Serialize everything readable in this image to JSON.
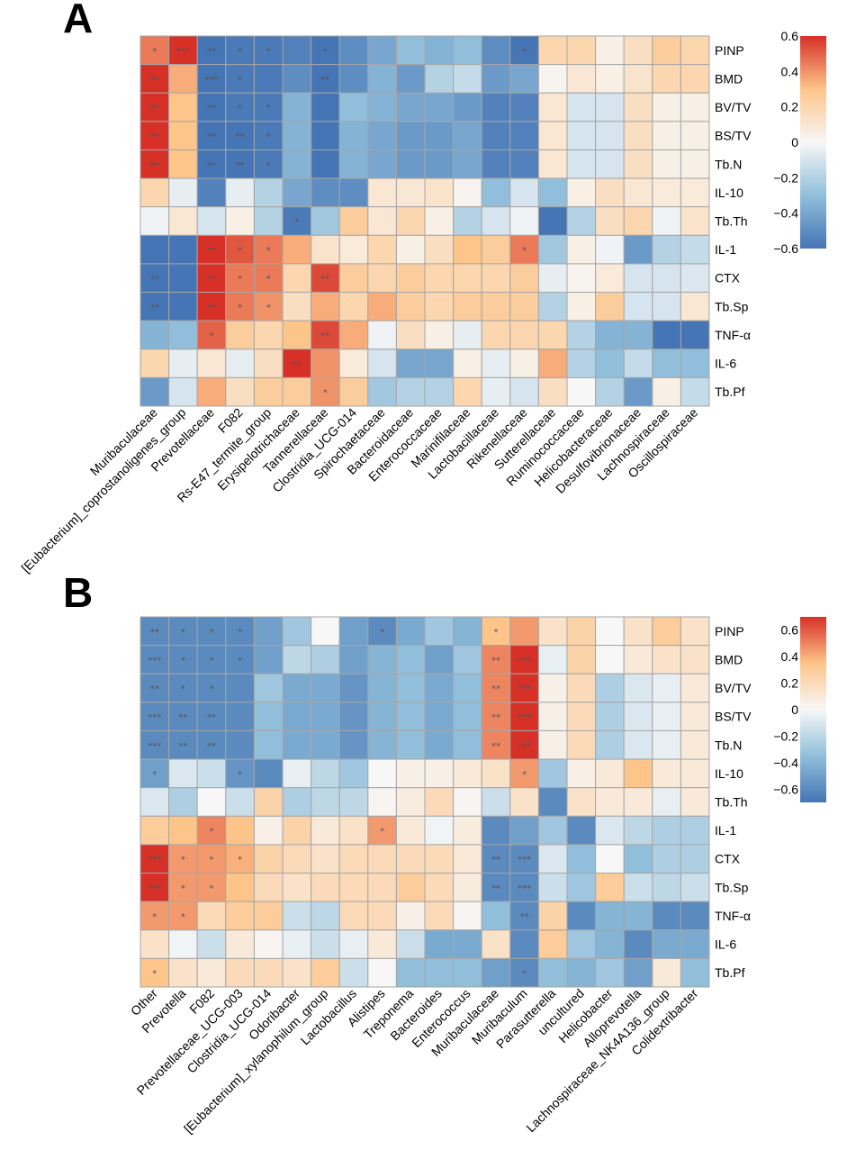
{
  "figure": {
    "panels": [
      "A",
      "B"
    ]
  },
  "chart_data": [
    {
      "type": "heatmap",
      "panel": "A",
      "rows": [
        "PINP",
        "BMD",
        "BV/TV",
        "BS/TV",
        "Tb.N",
        "IL-10",
        "Tb.Th",
        "IL-1",
        "CTX",
        "Tb.Sp",
        "TNF-α",
        "IL-6",
        "Tb.Pf"
      ],
      "columns": [
        "Muribaculaceae",
        "[Eubacterium]_coprostanoligenes_group",
        "Prevotellaceae",
        "F082",
        "Rs-E47_termite_group",
        "Erysipelotrichaceae",
        "Tannerellaceae",
        "Clostridia_UCG-014",
        "Spirochaetaceae",
        "Bacteroidaceae",
        "Enterococcaceae",
        "Marinifilaceae",
        "Lactobacillaceae",
        "Rikenellaceae",
        "Sutterellaceae",
        "Ruminococcaceae",
        "Helicobacteraceae",
        "Desulfovibrionaceae",
        "Lachnospiraceae",
        "Oscillospiraceae"
      ],
      "values": [
        [
          0.45,
          0.68,
          -0.6,
          -0.58,
          -0.58,
          -0.55,
          -0.6,
          -0.5,
          -0.4,
          -0.3,
          -0.35,
          -0.3,
          -0.5,
          -0.6,
          0.2,
          0.2,
          0.05,
          0.15,
          0.25,
          0.2
        ],
        [
          0.62,
          0.35,
          -0.6,
          -0.58,
          -0.58,
          -0.5,
          -0.6,
          -0.5,
          -0.35,
          -0.45,
          -0.2,
          -0.15,
          -0.45,
          -0.4,
          0.02,
          0.1,
          0.05,
          0.12,
          0.2,
          0.2
        ],
        [
          0.62,
          0.3,
          -0.6,
          -0.58,
          -0.58,
          -0.35,
          -0.6,
          -0.3,
          -0.35,
          -0.4,
          -0.4,
          -0.45,
          -0.55,
          -0.55,
          0.1,
          -0.1,
          -0.1,
          0.15,
          0.05,
          0.05
        ],
        [
          0.62,
          0.3,
          -0.6,
          -0.6,
          -0.58,
          -0.35,
          -0.6,
          -0.35,
          -0.4,
          -0.45,
          -0.45,
          -0.4,
          -0.55,
          -0.55,
          0.1,
          -0.1,
          -0.1,
          0.15,
          0.05,
          0.05
        ],
        [
          0.62,
          0.3,
          -0.6,
          -0.6,
          -0.58,
          -0.35,
          -0.6,
          -0.35,
          -0.4,
          -0.45,
          -0.45,
          -0.4,
          -0.55,
          -0.55,
          0.1,
          -0.1,
          -0.1,
          0.15,
          0.05,
          0.05
        ],
        [
          0.2,
          -0.05,
          -0.55,
          -0.05,
          -0.2,
          -0.4,
          -0.5,
          -0.5,
          0.1,
          0.1,
          0.12,
          0.02,
          -0.3,
          -0.1,
          -0.3,
          0.05,
          0.15,
          0.1,
          0.08,
          0.08
        ],
        [
          -0.02,
          0.1,
          -0.1,
          0.05,
          -0.2,
          -0.58,
          -0.25,
          0.25,
          0.1,
          0.2,
          0.05,
          -0.2,
          -0.1,
          -0.02,
          -0.6,
          -0.2,
          0.15,
          0.2,
          -0.02,
          0.12
        ],
        [
          -0.6,
          -0.6,
          0.6,
          0.52,
          0.45,
          0.35,
          0.12,
          0.08,
          0.2,
          0.05,
          0.15,
          0.3,
          0.25,
          0.45,
          -0.25,
          0.05,
          -0.02,
          -0.45,
          -0.2,
          -0.15
        ],
        [
          -0.6,
          -0.6,
          0.66,
          0.45,
          0.45,
          0.2,
          0.55,
          0.25,
          0.2,
          0.25,
          0.2,
          0.2,
          0.2,
          0.25,
          -0.05,
          0.02,
          0.08,
          -0.1,
          -0.1,
          -0.08
        ],
        [
          -0.6,
          -0.6,
          0.6,
          0.45,
          0.4,
          0.15,
          0.35,
          0.2,
          0.35,
          0.25,
          0.2,
          0.25,
          0.25,
          0.25,
          -0.2,
          0.05,
          0.25,
          -0.1,
          -0.1,
          0.1
        ],
        [
          -0.35,
          -0.3,
          0.5,
          0.25,
          0.2,
          0.3,
          0.55,
          0.35,
          -0.02,
          0.15,
          0.05,
          -0.05,
          0.2,
          0.2,
          0.2,
          -0.2,
          -0.35,
          -0.35,
          -0.6,
          -0.6
        ],
        [
          0.2,
          -0.05,
          0.1,
          -0.05,
          0.15,
          0.66,
          0.4,
          0.08,
          -0.1,
          -0.4,
          -0.4,
          0.05,
          -0.05,
          0.05,
          0.35,
          -0.2,
          -0.3,
          -0.15,
          -0.3,
          -0.3
        ],
        [
          -0.45,
          -0.1,
          0.35,
          0.15,
          0.25,
          0.25,
          0.4,
          0.25,
          -0.25,
          -0.2,
          -0.2,
          0.2,
          -0.05,
          -0.1,
          0.15,
          0,
          -0.2,
          -0.45,
          0.05,
          -0.15
        ]
      ],
      "significance": [
        [
          "*",
          "***",
          "**",
          "*",
          "*",
          "",
          "*",
          "",
          "",
          "",
          "",
          "",
          "",
          "*",
          "",
          "",
          "",
          "",
          "",
          ""
        ],
        [
          "**",
          "",
          "***",
          "*",
          "",
          "",
          "**",
          "",
          "",
          "",
          "",
          "",
          "",
          "",
          "",
          "",
          "",
          "",
          "",
          ""
        ],
        [
          "**",
          "",
          "**",
          "*",
          "*",
          "",
          "",
          "",
          "",
          "",
          "",
          "",
          "",
          "",
          "",
          "",
          "",
          "",
          "",
          ""
        ],
        [
          "**",
          "",
          "**",
          "**",
          "*",
          "",
          "",
          "",
          "",
          "",
          "",
          "",
          "",
          "",
          "",
          "",
          "",
          "",
          "",
          ""
        ],
        [
          "**",
          "",
          "**",
          "**",
          "*",
          "",
          "",
          "",
          "",
          "",
          "",
          "",
          "",
          "",
          "",
          "",
          "",
          "",
          "",
          ""
        ],
        [
          "",
          "",
          "",
          "",
          "",
          "",
          "",
          "",
          "",
          "",
          "",
          "",
          "",
          "",
          "",
          "",
          "",
          "",
          "",
          ""
        ],
        [
          "",
          "",
          "",
          "",
          "",
          "*",
          "",
          "",
          "",
          "",
          "",
          "",
          "",
          "",
          "",
          "",
          "",
          "",
          "",
          ""
        ],
        [
          "",
          "",
          "**",
          "*",
          "*",
          "",
          "",
          "",
          "",
          "",
          "",
          "",
          "",
          "*",
          "",
          "",
          "",
          "",
          "",
          ""
        ],
        [
          "**",
          "",
          "**",
          "*",
          "*",
          "",
          "**",
          "",
          "",
          "",
          "",
          "",
          "",
          "",
          "",
          "",
          "",
          "",
          "",
          ""
        ],
        [
          "**",
          "",
          "**",
          "*",
          "*",
          "",
          "",
          "",
          "",
          "",
          "",
          "",
          "",
          "",
          "",
          "",
          "",
          "",
          "",
          ""
        ],
        [
          "",
          "",
          "*",
          "",
          "",
          "",
          "**",
          "",
          "",
          "",
          "",
          "",
          "",
          "",
          "",
          "",
          "",
          "",
          "",
          ""
        ],
        [
          "",
          "",
          "",
          "",
          "",
          "**",
          "",
          "",
          "",
          "",
          "",
          "",
          "",
          "",
          "",
          "",
          "",
          "",
          "",
          ""
        ],
        [
          "",
          "",
          "",
          "",
          "",
          "",
          "*",
          "",
          "",
          "",
          "",
          "",
          "",
          "",
          "",
          "",
          "",
          "",
          "",
          ""
        ]
      ],
      "color_scale": {
        "min": -0.6,
        "max": 0.6,
        "ticks": [
          0.6,
          0.4,
          0.2,
          0,
          -0.2,
          -0.4,
          -0.6
        ],
        "tick_labels": [
          "0.6",
          "0.4",
          "0.2",
          "0",
          "−0.2",
          "−0.4",
          "−0.6"
        ]
      }
    },
    {
      "type": "heatmap",
      "panel": "B",
      "rows": [
        "PINP",
        "BMD",
        "BV/TV",
        "BS/TV",
        "Tb.N",
        "IL-10",
        "Tb.Th",
        "IL-1",
        "CTX",
        "Tb.Sp",
        "TNF-α",
        "IL-6",
        "Tb.Pf"
      ],
      "columns": [
        "Other",
        "Prevotella",
        "F082",
        "Prevotellaceae_UCG-003",
        "Clostridia_UCG-014",
        "Odoribacter",
        "[Eubacterium]_xylanophilum_group",
        "Lactobacillus",
        "Alistipes",
        "Treponema",
        "Bacteroides",
        "Enterococcus",
        "Muribaculaceae",
        "Muribaculum",
        "Parasutterella",
        "uncultured",
        "Helicobacter",
        "Alloprevotella",
        "Lachnospiraceae_NK4A136_group",
        "Colidextribacter"
      ],
      "values": [
        [
          -0.6,
          -0.6,
          -0.6,
          -0.6,
          -0.5,
          -0.3,
          0,
          -0.5,
          -0.6,
          -0.45,
          -0.3,
          -0.4,
          0.35,
          0.45,
          0.15,
          0.25,
          0,
          0.15,
          0.3,
          0.15
        ],
        [
          -0.6,
          -0.6,
          -0.6,
          -0.6,
          -0.5,
          -0.2,
          -0.25,
          -0.5,
          -0.4,
          -0.35,
          -0.5,
          -0.3,
          0.5,
          0.7,
          -0.05,
          0.25,
          0,
          0.1,
          0.15,
          0.15
        ],
        [
          -0.6,
          -0.6,
          -0.6,
          -0.6,
          -0.3,
          -0.45,
          -0.45,
          -0.55,
          -0.4,
          -0.35,
          -0.45,
          -0.35,
          0.5,
          0.7,
          0.05,
          0.2,
          -0.25,
          -0.1,
          -0.05,
          0.1
        ],
        [
          -0.6,
          -0.6,
          -0.6,
          -0.6,
          -0.35,
          -0.45,
          -0.45,
          -0.55,
          -0.4,
          -0.35,
          -0.45,
          -0.35,
          0.5,
          0.7,
          0.05,
          0.2,
          -0.25,
          -0.1,
          -0.05,
          0.1
        ],
        [
          -0.6,
          -0.6,
          -0.6,
          -0.6,
          -0.35,
          -0.45,
          -0.45,
          -0.55,
          -0.4,
          -0.35,
          -0.45,
          -0.35,
          0.5,
          0.7,
          0.05,
          0.2,
          -0.25,
          -0.1,
          -0.05,
          0.1
        ],
        [
          -0.5,
          -0.1,
          -0.15,
          -0.55,
          -0.6,
          -0.05,
          -0.2,
          -0.3,
          0,
          0.05,
          0.05,
          0.1,
          0.15,
          0.45,
          -0.3,
          0.05,
          0.1,
          0.35,
          0.1,
          0.1
        ],
        [
          -0.1,
          -0.25,
          0,
          -0.15,
          0.25,
          -0.25,
          -0.2,
          -0.2,
          0.02,
          0.08,
          0.2,
          0.02,
          -0.15,
          0.15,
          -0.6,
          0.15,
          0.1,
          0.1,
          -0.05,
          0.1
        ],
        [
          0.3,
          0.35,
          0.5,
          0.35,
          0.05,
          0.25,
          0.1,
          0.15,
          0.45,
          0.1,
          -0.02,
          0.08,
          -0.6,
          -0.5,
          -0.3,
          -0.6,
          -0.1,
          -0.2,
          -0.25,
          -0.25
        ],
        [
          0.7,
          0.45,
          0.45,
          0.4,
          0.25,
          0.2,
          0.15,
          0.2,
          0.2,
          0.2,
          0.2,
          0.1,
          -0.6,
          -0.6,
          -0.1,
          -0.35,
          0,
          -0.35,
          -0.25,
          -0.25
        ],
        [
          0.7,
          0.45,
          0.45,
          0.35,
          0.2,
          0.15,
          0.2,
          0.2,
          0.2,
          0.3,
          0.2,
          0.08,
          -0.6,
          -0.6,
          -0.15,
          -0.3,
          0.3,
          -0.15,
          -0.2,
          -0.15
        ],
        [
          0.45,
          0.45,
          0.2,
          0.3,
          0.3,
          -0.15,
          -0.2,
          0.2,
          0.2,
          0.05,
          0.2,
          0.02,
          -0.35,
          -0.6,
          0.25,
          -0.6,
          -0.4,
          -0.4,
          -0.6,
          -0.6
        ],
        [
          0.15,
          -0.02,
          -0.15,
          0.1,
          0.02,
          -0.05,
          -0.15,
          -0.05,
          0.1,
          -0.15,
          -0.45,
          -0.45,
          0.15,
          -0.6,
          0.3,
          -0.3,
          -0.4,
          -0.6,
          -0.45,
          -0.45
        ],
        [
          0.35,
          0.15,
          0.1,
          0.2,
          0.2,
          0.15,
          0.3,
          -0.15,
          0,
          -0.35,
          -0.35,
          -0.35,
          -0.5,
          -0.6,
          -0.35,
          -0.4,
          -0.3,
          -0.5,
          0.1,
          -0.35
        ]
      ],
      "significance": [
        [
          "**",
          "*",
          "*",
          "*",
          "",
          "",
          "",
          "",
          "*",
          "",
          "",
          "",
          "*",
          "",
          "",
          "",
          "",
          "",
          "",
          ""
        ],
        [
          "***",
          "*",
          "*",
          "*",
          "",
          "",
          "",
          "",
          "",
          "",
          "",
          "",
          "**",
          "***",
          "",
          "",
          "",
          "",
          "",
          ""
        ],
        [
          "**",
          "*",
          "*",
          "",
          "",
          "",
          "",
          "",
          "",
          "",
          "",
          "",
          "**",
          "***",
          "",
          "",
          "",
          "",
          "",
          ""
        ],
        [
          "***",
          "**",
          "**",
          "",
          "",
          "",
          "",
          "",
          "",
          "",
          "",
          "",
          "**",
          "***",
          "",
          "",
          "",
          "",
          "",
          ""
        ],
        [
          "***",
          "**",
          "**",
          "",
          "",
          "",
          "",
          "",
          "",
          "",
          "",
          "",
          "**",
          "***",
          "",
          "",
          "",
          "",
          "",
          ""
        ],
        [
          "*",
          "",
          "",
          "*",
          "",
          "",
          "",
          "",
          "",
          "",
          "",
          "",
          "",
          "*",
          "",
          "",
          "",
          "",
          "",
          ""
        ],
        [
          "",
          "",
          "",
          "",
          "",
          "",
          "",
          "",
          "",
          "",
          "",
          "",
          "",
          "",
          "",
          "",
          "",
          "",
          "",
          ""
        ],
        [
          "",
          "",
          "*",
          "",
          "",
          "",
          "",
          "",
          "*",
          "",
          "",
          "",
          "",
          "",
          "",
          "",
          "",
          "",
          "",
          ""
        ],
        [
          "***",
          "*",
          "*",
          "*",
          "",
          "",
          "",
          "",
          "",
          "",
          "",
          "",
          "**",
          "***",
          "",
          "",
          "",
          "",
          "",
          ""
        ],
        [
          "***",
          "*",
          "*",
          "",
          "",
          "",
          "",
          "",
          "",
          "",
          "",
          "",
          "**",
          "***",
          "",
          "",
          "",
          "",
          "",
          ""
        ],
        [
          "*",
          "*",
          "",
          "",
          "",
          "",
          "",
          "",
          "",
          "",
          "",
          "",
          "",
          "**",
          "",
          "",
          "",
          "",
          "",
          ""
        ],
        [
          "",
          "",
          "",
          "",
          "",
          "",
          "",
          "",
          "",
          "",
          "",
          "",
          "",
          "",
          "",
          "",
          "",
          "",
          "",
          ""
        ],
        [
          "*",
          "",
          "",
          "",
          "",
          "",
          "",
          "",
          "",
          "",
          "",
          "",
          "",
          "*",
          "",
          "",
          "",
          "",
          "",
          ""
        ]
      ],
      "color_scale": {
        "min": -0.7,
        "max": 0.7,
        "ticks": [
          0.6,
          0.4,
          0.2,
          0,
          -0.2,
          -0.4,
          -0.6
        ],
        "tick_labels": [
          "0.6",
          "0.4",
          "0.2",
          "0",
          "−0.2",
          "−0.4",
          "−0.6"
        ]
      }
    }
  ]
}
